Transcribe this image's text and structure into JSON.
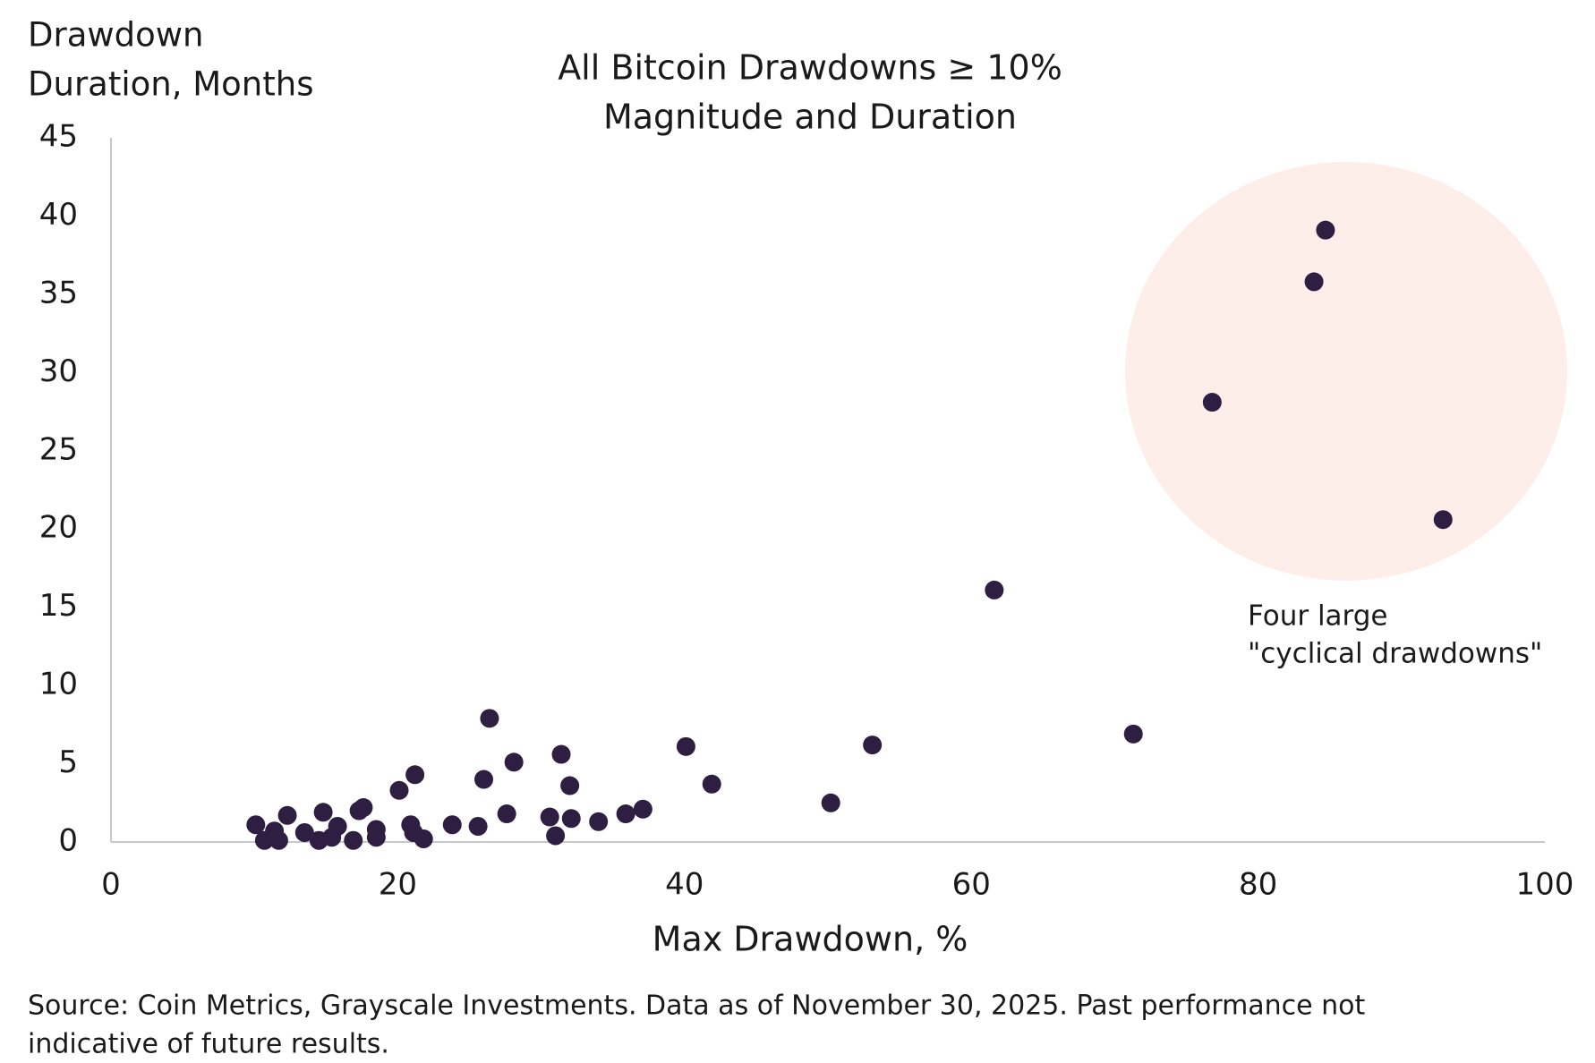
{
  "chart_data": {
    "type": "scatter",
    "title": "All Bitcoin Drawdowns ≥ 10%",
    "subtitle": "Magnitude and Duration",
    "ylabel": [
      "Drawdown",
      "Duration, Months"
    ],
    "xlabel": "Max Drawdown, %",
    "annotation": [
      "Four large",
      "\"cyclical drawdowns\""
    ],
    "source": [
      "Source: Coin Metrics, Grayscale Investments. Data as of November 30, 2025. Past performance not",
      "indicative of future results."
    ],
    "xlim": [
      0,
      100
    ],
    "xticks": [
      0,
      20,
      40,
      60,
      80,
      100
    ],
    "ylim": [
      0,
      45
    ],
    "yticks": [
      0,
      5,
      10,
      15,
      20,
      25,
      30,
      35,
      40,
      45
    ],
    "grid": false,
    "series": [
      {
        "name": "Drawdowns",
        "color": "#2d1e42",
        "x": [
          84.7,
          83.9,
          76.8,
          92.9,
          61.6,
          71.3,
          53.1,
          50.2,
          40.1,
          41.9,
          37.1,
          35.9,
          34.0,
          32.1,
          32.0,
          31.4,
          31.0,
          30.6,
          28.1,
          27.6,
          26.4,
          26.0,
          25.6,
          23.8,
          21.8,
          21.2,
          20.9,
          20.1,
          21.1,
          18.5,
          18.5,
          17.6,
          17.3,
          16.9,
          15.8,
          15.4,
          14.8,
          14.5,
          13.5,
          12.3,
          11.7,
          11.4,
          10.7,
          10.1
        ],
        "values": [
          39.1,
          35.8,
          28.1,
          20.6,
          16.1,
          6.9,
          6.2,
          2.5,
          6.1,
          3.7,
          2.1,
          1.8,
          1.3,
          1.5,
          3.6,
          5.6,
          0.4,
          1.6,
          5.1,
          1.8,
          7.9,
          4.0,
          1.0,
          1.1,
          0.2,
          4.3,
          1.1,
          3.3,
          0.6,
          0.8,
          0.3,
          2.2,
          2.0,
          0.1,
          1.0,
          0.3,
          1.9,
          0.1,
          0.6,
          1.7,
          0.1,
          0.7,
          0.1,
          1.1
        ]
      }
    ]
  }
}
